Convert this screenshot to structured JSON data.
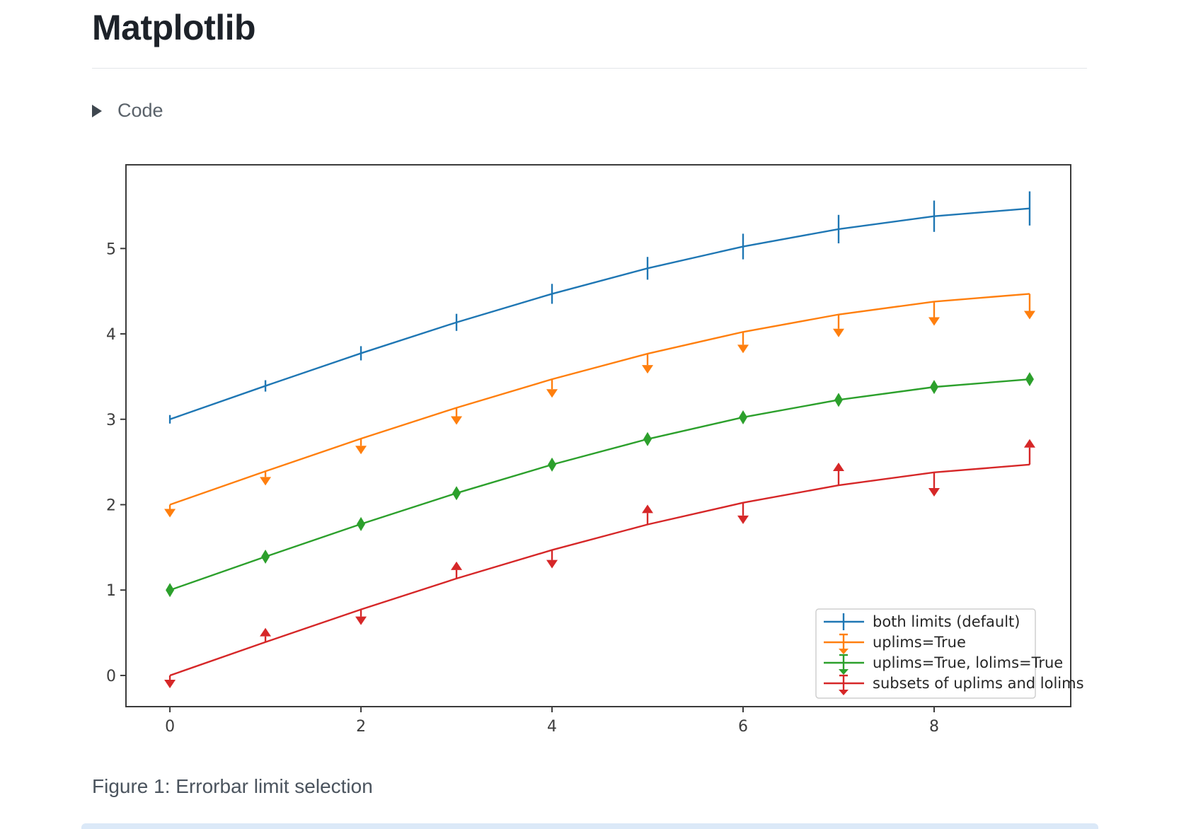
{
  "page": {
    "title": "Matplotlib",
    "code_toggle_label": "Code",
    "figure_caption": "Figure 1: Errorbar limit selection"
  },
  "chart_data": {
    "type": "line",
    "title": "",
    "xlabel": "",
    "ylabel": "",
    "grid": false,
    "x": [
      0,
      1,
      2,
      3,
      4,
      5,
      6,
      7,
      8,
      9
    ],
    "yerr": [
      0.05,
      0.0667,
      0.0833,
      0.1,
      0.1167,
      0.1333,
      0.15,
      0.1667,
      0.1833,
      0.2
    ],
    "series": [
      {
        "name": "both limits (default)",
        "color": "#1f77b4",
        "limit_style": "both",
        "values": [
          3.0,
          3.391,
          3.773,
          4.135,
          4.469,
          4.768,
          5.023,
          5.227,
          5.378,
          5.469
        ]
      },
      {
        "name": "uplims=True",
        "color": "#ff7f0e",
        "limit_style": "uplims",
        "values": [
          2.0,
          2.391,
          2.773,
          3.135,
          3.469,
          3.768,
          4.023,
          4.227,
          4.378,
          4.469
        ]
      },
      {
        "name": "uplims=True, lolims=True",
        "color": "#2ca02c",
        "limit_style": "uplims_lolims",
        "values": [
          1.0,
          1.391,
          1.773,
          2.135,
          2.469,
          2.768,
          3.023,
          3.227,
          3.378,
          3.469
        ]
      },
      {
        "name": "subsets of uplims and lolims",
        "color": "#d62728",
        "limit_style": "mixed",
        "point_limits": [
          "uplims",
          "lolims",
          "uplims",
          "lolims",
          "uplims",
          "lolims",
          "uplims",
          "lolims",
          "uplims",
          "lolims"
        ],
        "values": [
          0.0,
          0.391,
          0.773,
          1.135,
          1.469,
          1.768,
          2.023,
          2.227,
          2.378,
          2.469
        ]
      }
    ],
    "xticks": [
      0,
      2,
      4,
      6,
      8
    ],
    "yticks": [
      0,
      1,
      2,
      3,
      4,
      5
    ],
    "xlim": [
      -0.46,
      9.43
    ],
    "ylim": [
      -0.365,
      5.98
    ],
    "legend": {
      "position": "lower right",
      "entries": [
        "both limits (default)",
        "uplims=True",
        "uplims=True, lolims=True",
        "subsets of uplims and lolims"
      ]
    },
    "axis_color": "#3b3b3b",
    "tick_label_color": "#3d3d3d",
    "legend_text_color": "#262626",
    "legend_border_color": "#cfcfcf"
  }
}
